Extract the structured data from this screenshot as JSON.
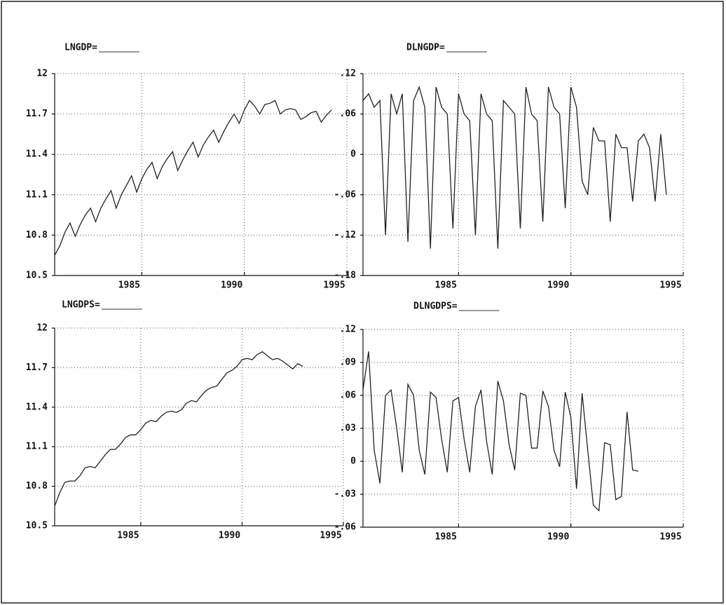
{
  "chart_data": [
    {
      "type": "line",
      "title": "LNGDP=",
      "color": "#222222",
      "grid": true,
      "xlim": [
        1980.75,
        1995
      ],
      "xticks": [
        1985,
        1990,
        1995
      ],
      "ylim": [
        10.5,
        12
      ],
      "yticks": [
        10.5,
        10.8,
        11.1,
        11.4,
        11.7,
        12
      ],
      "x": [
        1980.75,
        1981,
        1981.25,
        1981.5,
        1981.75,
        1982,
        1982.25,
        1982.5,
        1982.75,
        1983,
        1983.25,
        1983.5,
        1983.75,
        1984,
        1984.25,
        1984.5,
        1984.75,
        1985,
        1985.25,
        1985.5,
        1985.75,
        1986,
        1986.25,
        1986.5,
        1986.75,
        1987,
        1987.25,
        1987.5,
        1987.75,
        1988,
        1988.25,
        1988.5,
        1988.75,
        1989,
        1989.25,
        1989.5,
        1989.75,
        1990,
        1990.25,
        1990.5,
        1990.75,
        1991,
        1991.25,
        1991.5,
        1991.75,
        1992,
        1992.25,
        1992.5,
        1992.75,
        1993,
        1993.25,
        1993.5,
        1993.75,
        1994,
        1994.25
      ],
      "values": [
        10.65,
        10.72,
        10.82,
        10.89,
        10.79,
        10.88,
        10.95,
        11.0,
        10.9,
        11.0,
        11.07,
        11.13,
        11.0,
        11.1,
        11.17,
        11.24,
        11.12,
        11.22,
        11.29,
        11.34,
        11.22,
        11.31,
        11.37,
        11.42,
        11.28,
        11.36,
        11.43,
        11.49,
        11.38,
        11.47,
        11.53,
        11.58,
        11.49,
        11.57,
        11.64,
        11.7,
        11.63,
        11.73,
        11.8,
        11.76,
        11.7,
        11.77,
        11.78,
        11.8,
        11.7,
        11.73,
        11.74,
        11.73,
        11.66,
        11.68,
        11.71,
        11.72,
        11.64,
        11.69,
        11.73
      ]
    },
    {
      "type": "line",
      "title": "DLNGDP=",
      "color": "#222222",
      "grid": true,
      "xlim": [
        1980.75,
        1995
      ],
      "xticks": [
        1985,
        1990,
        1995
      ],
      "ylim": [
        -0.18,
        0.12
      ],
      "yticks": [
        {
          "value": -0.18,
          "label": "-.18"
        },
        {
          "value": -0.12,
          "label": "-.12"
        },
        {
          "value": -0.06,
          "label": "-.06"
        },
        0,
        {
          "value": 0.06,
          "label": ".06"
        },
        {
          "value": 0.12,
          "label": ".12"
        }
      ],
      "x": [
        1980.75,
        1981,
        1981.25,
        1981.5,
        1981.75,
        1982,
        1982.25,
        1982.5,
        1982.75,
        1983,
        1983.25,
        1983.5,
        1983.75,
        1984,
        1984.25,
        1984.5,
        1984.75,
        1985,
        1985.25,
        1985.5,
        1985.75,
        1986,
        1986.25,
        1986.5,
        1986.75,
        1987,
        1987.25,
        1987.5,
        1987.75,
        1988,
        1988.25,
        1988.5,
        1988.75,
        1989,
        1989.25,
        1989.5,
        1989.75,
        1990,
        1990.25,
        1990.5,
        1990.75,
        1991,
        1991.25,
        1991.5,
        1991.75,
        1992,
        1992.25,
        1992.5,
        1992.75,
        1993,
        1993.25,
        1993.5,
        1993.75,
        1994,
        1994.25
      ],
      "values": [
        0.08,
        0.09,
        0.07,
        0.08,
        -0.12,
        0.09,
        0.06,
        0.09,
        -0.13,
        0.08,
        0.1,
        0.07,
        -0.14,
        0.1,
        0.07,
        0.06,
        -0.11,
        0.09,
        0.06,
        0.05,
        -0.12,
        0.09,
        0.06,
        0.05,
        -0.14,
        0.08,
        0.07,
        0.06,
        -0.11,
        0.1,
        0.06,
        0.05,
        -0.1,
        0.1,
        0.07,
        0.06,
        -0.08,
        0.1,
        0.07,
        -0.04,
        -0.06,
        0.04,
        0.02,
        0.02,
        -0.1,
        0.03,
        0.01,
        0.01,
        -0.07,
        0.02,
        0.03,
        0.01,
        -0.07,
        0.03,
        -0.06
      ]
    },
    {
      "type": "line",
      "title": "LNGDPS=",
      "color": "#222222",
      "grid": true,
      "xlim": [
        1980.75,
        1995
      ],
      "xticks": [
        1985,
        1990,
        1995
      ],
      "ylim": [
        10.5,
        12
      ],
      "yticks": [
        10.5,
        10.8,
        11.1,
        11.4,
        11.7,
        12
      ],
      "x": [
        1980.75,
        1981,
        1981.25,
        1981.5,
        1981.75,
        1982,
        1982.25,
        1982.5,
        1982.75,
        1983,
        1983.25,
        1983.5,
        1983.75,
        1984,
        1984.25,
        1984.5,
        1984.75,
        1985,
        1985.25,
        1985.5,
        1985.75,
        1986,
        1986.25,
        1986.5,
        1986.75,
        1987,
        1987.25,
        1987.5,
        1987.75,
        1988,
        1988.25,
        1988.5,
        1988.75,
        1989,
        1989.25,
        1989.5,
        1989.75,
        1990,
        1990.25,
        1990.5,
        1990.75,
        1991,
        1991.25,
        1991.5,
        1991.75,
        1992,
        1992.25,
        1992.5,
        1992.75,
        1993
      ],
      "values": [
        10.65,
        10.75,
        10.83,
        10.84,
        10.84,
        10.88,
        10.94,
        10.95,
        10.94,
        10.99,
        11.04,
        11.08,
        11.08,
        11.12,
        11.17,
        11.19,
        11.19,
        11.23,
        11.28,
        11.3,
        11.29,
        11.33,
        11.36,
        11.37,
        11.36,
        11.38,
        11.43,
        11.45,
        11.44,
        11.49,
        11.53,
        11.55,
        11.56,
        11.61,
        11.66,
        11.68,
        11.71,
        11.76,
        11.77,
        11.76,
        11.8,
        11.82,
        11.79,
        11.76,
        11.77,
        11.75,
        11.72,
        11.69,
        11.73,
        11.71
      ]
    },
    {
      "type": "line",
      "title": "DLNGDPS=",
      "color": "#222222",
      "grid": true,
      "xlim": [
        1980.75,
        1995
      ],
      "xticks": [
        1985,
        1990,
        1995
      ],
      "ylim": [
        -0.06,
        0.12
      ],
      "yticks": [
        {
          "value": -0.06,
          "label": "-.06"
        },
        {
          "value": -0.03,
          "label": "-.03"
        },
        0,
        {
          "value": 0.03,
          "label": ".03"
        },
        {
          "value": 0.06,
          "label": ".06"
        },
        {
          "value": 0.09,
          "label": ".09"
        },
        {
          "value": 0.12,
          "label": ".12"
        }
      ],
      "x": [
        1980.75,
        1981,
        1981.25,
        1981.5,
        1981.75,
        1982,
        1982.25,
        1982.5,
        1982.75,
        1983,
        1983.25,
        1983.5,
        1983.75,
        1984,
        1984.25,
        1984.5,
        1984.75,
        1985,
        1985.25,
        1985.5,
        1985.75,
        1986,
        1986.25,
        1986.5,
        1986.75,
        1987,
        1987.25,
        1987.5,
        1987.75,
        1988,
        1988.25,
        1988.5,
        1988.75,
        1989,
        1989.25,
        1989.5,
        1989.75,
        1990,
        1990.25,
        1990.5,
        1990.75,
        1991,
        1991.25,
        1991.5,
        1991.75,
        1992,
        1992.25,
        1992.5,
        1992.75,
        1993
      ],
      "values": [
        0.065,
        0.1,
        0.01,
        -0.02,
        0.06,
        0.065,
        0.03,
        -0.01,
        0.07,
        0.06,
        0.01,
        -0.012,
        0.063,
        0.058,
        0.02,
        -0.01,
        0.055,
        0.058,
        0.02,
        -0.01,
        0.05,
        0.065,
        0.018,
        -0.012,
        0.073,
        0.055,
        0.015,
        -0.008,
        0.062,
        0.06,
        0.012,
        0.012,
        0.064,
        0.05,
        0.01,
        -0.005,
        0.063,
        0.04,
        -0.025,
        0.062,
        0.01,
        -0.04,
        -0.045,
        0.017,
        0.015,
        -0.035,
        -0.032,
        0.045,
        -0.008,
        -0.009
      ]
    }
  ]
}
